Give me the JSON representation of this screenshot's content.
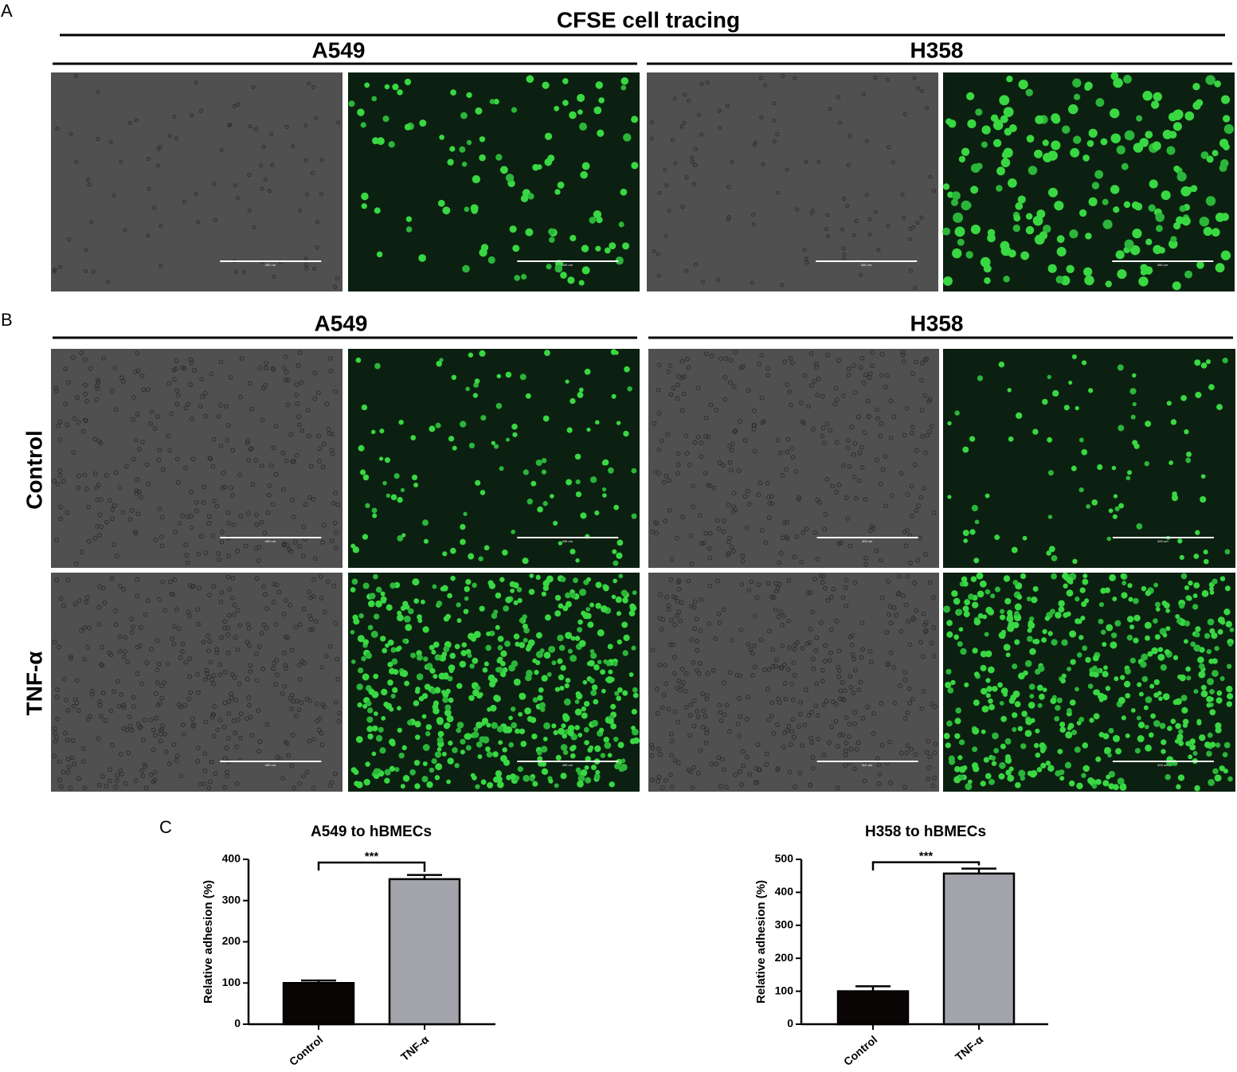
{
  "panel_labels": [
    "A",
    "B",
    "C"
  ],
  "panel_a": {
    "title": "CFSE cell tracing",
    "groups": [
      "A549",
      "H358"
    ]
  },
  "panel_b": {
    "groups": [
      "A549",
      "H358"
    ],
    "rows": [
      "Control",
      "TNF-α"
    ]
  },
  "scale_label": "400 um",
  "chart_data": [
    {
      "type": "bar",
      "title": "A549 to hBMECs",
      "y_label": "Relative adhesion (%)",
      "categories": [
        "Control",
        "TNF-α"
      ],
      "values": [
        100,
        352
      ],
      "errors": [
        6,
        10
      ],
      "colors": [
        "#0a0505",
        "#a3a3ab"
      ],
      "ylim": [
        0,
        400
      ],
      "yticks": [
        0,
        100,
        200,
        300,
        400
      ],
      "annotation": "***"
    },
    {
      "type": "bar",
      "title": "H358 to hBMECs",
      "y_label": "Relative adhesion (%)",
      "categories": [
        "Control",
        "TNF-α"
      ],
      "values": [
        100,
        457
      ],
      "errors": [
        15,
        15
      ],
      "colors": [
        "#0a0505",
        "#a3a3ab"
      ],
      "ylim": [
        0,
        500
      ],
      "yticks": [
        0,
        100,
        200,
        300,
        400,
        500
      ],
      "annotation": "***"
    }
  ]
}
